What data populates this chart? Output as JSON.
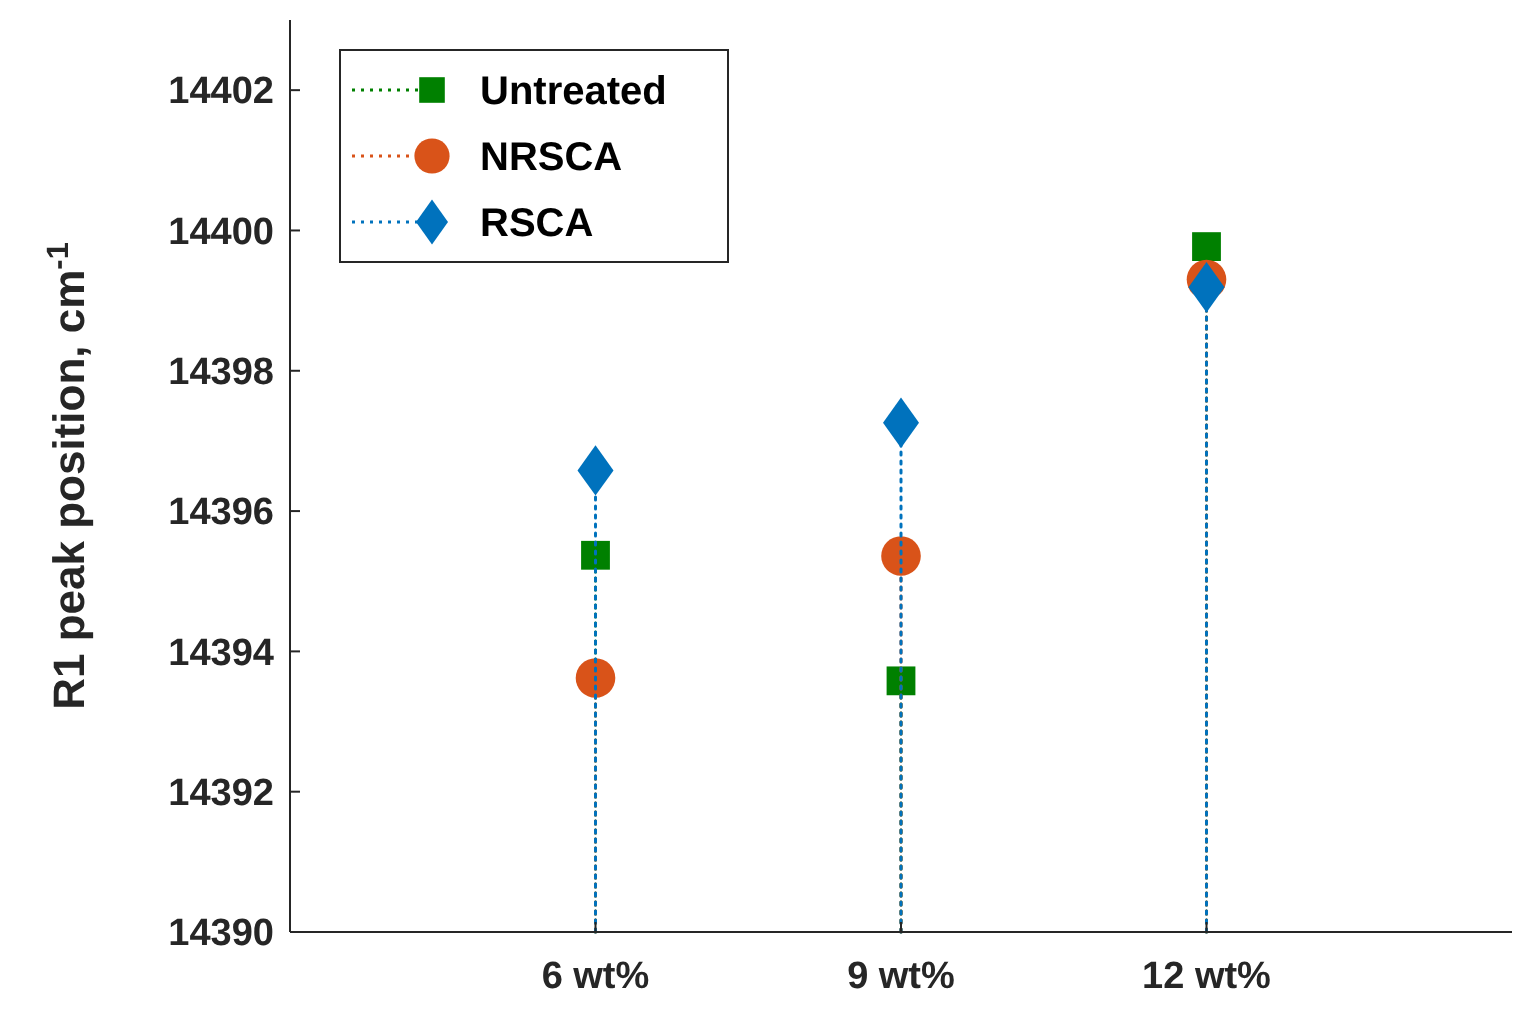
{
  "chart_data": {
    "type": "lollipop",
    "ylabel": "R1 peak position, cm$^{-1}$",
    "categories": [
      "6 wt%",
      "9 wt%",
      "12 wt%"
    ],
    "ylim": [
      14390,
      14403
    ],
    "yticks": [
      14390,
      14392,
      14394,
      14396,
      14398,
      14400,
      14402
    ],
    "legend": "top left",
    "line_style": "dotted",
    "grid": false,
    "series": [
      {
        "name": "Untreated",
        "color": "#008000",
        "marker": "square",
        "values": [
          14395.37,
          14393.58,
          14399.77
        ]
      },
      {
        "name": "NRSCA",
        "color": "#d95319",
        "marker": "circle",
        "values": [
          14393.62,
          14395.36,
          14399.3
        ]
      },
      {
        "name": "RSCA",
        "color": "#0072bd",
        "marker": "diamond",
        "values": [
          14396.58,
          14397.26,
          14399.19
        ]
      }
    ]
  }
}
